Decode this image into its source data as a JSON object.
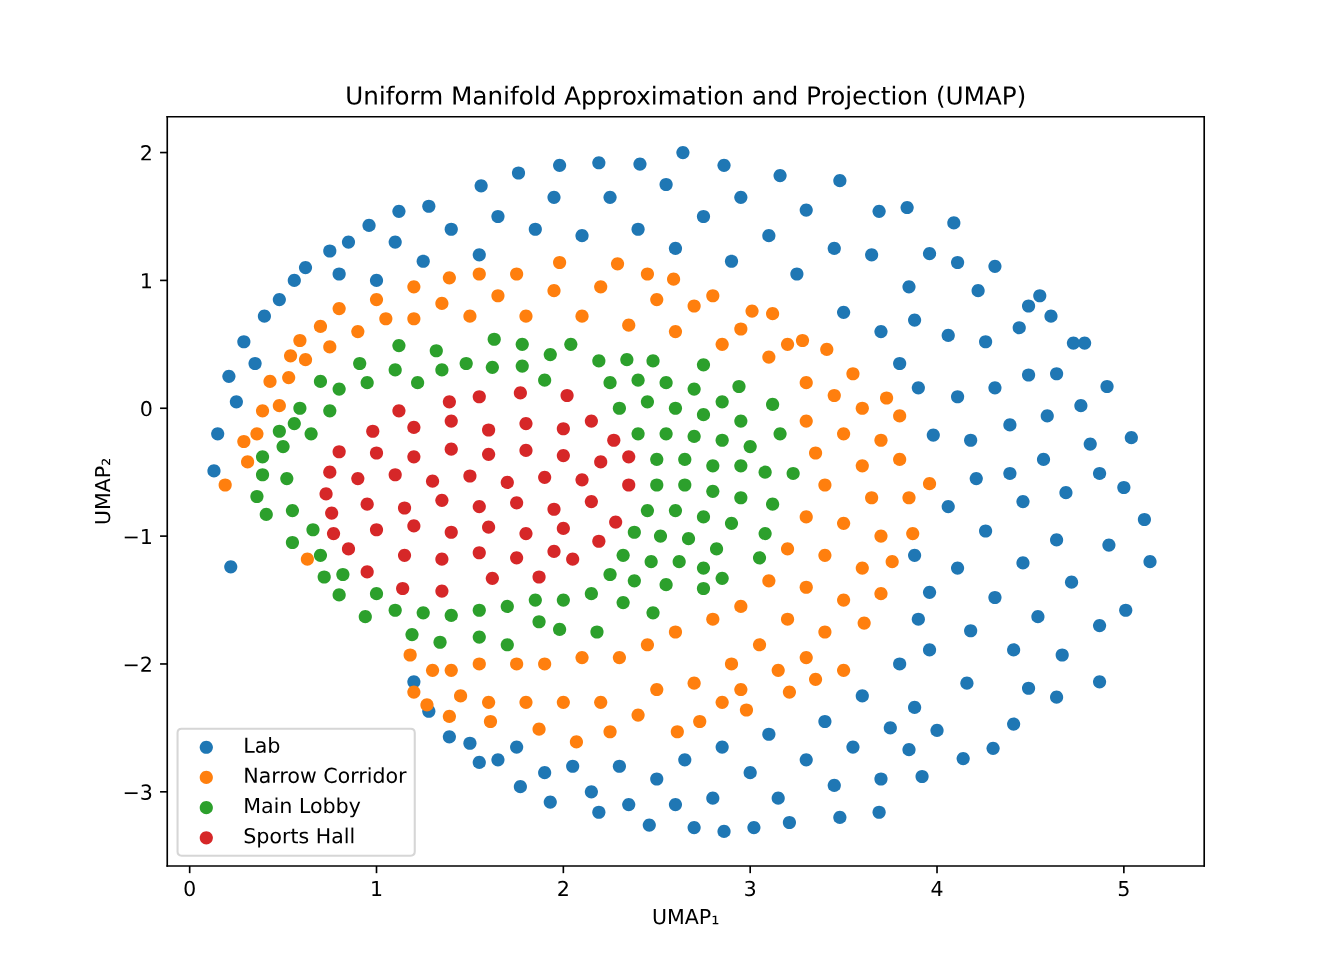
{
  "chart_data": {
    "type": "scatter",
    "title": "Uniform Manifold Approximation and Projection (UMAP)",
    "xlabel": "UMAP₁",
    "ylabel": "UMAP₂",
    "xlim": [
      -0.12,
      5.43
    ],
    "ylim": [
      -3.58,
      2.28
    ],
    "xticks": [
      0,
      1,
      2,
      3,
      4,
      5
    ],
    "yticks": [
      -3,
      -2,
      -1,
      0,
      1,
      2
    ],
    "marker": "circle",
    "legend": "bottom left",
    "series": [
      {
        "name": "Lab",
        "color": "#1f77b4",
        "x": [
          0.13,
          0.22,
          0.15,
          0.21,
          0.29,
          0.4,
          0.56,
          0.75,
          0.96,
          1.12,
          1.28,
          1.56,
          1.76,
          1.98,
          2.19,
          2.41,
          2.64,
          2.86,
          3.16,
          3.48,
          3.69,
          3.84,
          4.09,
          4.31,
          4.55,
          4.79,
          4.91,
          5.04,
          5.11,
          5.14,
          5.01,
          4.87,
          4.64,
          4.41,
          4.3,
          4.14,
          3.92,
          3.69,
          3.48,
          3.21,
          3.02,
          2.86,
          2.7,
          2.46,
          2.19,
          1.93,
          1.77,
          1.55,
          1.39,
          1.28,
          1.2,
          3.96,
          4.11,
          4.22,
          4.49,
          4.61,
          4.44,
          4.73,
          4.26,
          4.06,
          3.88,
          4.64,
          4.49,
          4.31,
          4.11,
          3.9,
          4.77,
          4.59,
          4.39,
          4.18,
          3.98,
          4.82,
          4.57,
          4.39,
          4.21,
          4.87,
          5.0,
          4.69,
          4.46,
          4.06,
          4.26,
          4.64,
          4.92,
          4.46,
          4.11,
          4.72,
          4.31,
          3.96,
          4.54,
          4.87,
          4.18,
          4.41,
          4.67,
          3.96,
          4.16,
          4.49,
          3.88,
          4.0,
          3.85,
          0.35,
          0.48,
          0.62,
          0.85,
          0.8,
          1.0,
          1.1,
          1.25,
          1.4,
          1.55,
          1.65,
          1.85,
          1.95,
          2.1,
          2.25,
          2.4,
          2.55,
          2.6,
          2.75,
          2.9,
          2.95,
          3.1,
          3.25,
          3.3,
          3.45,
          3.5,
          3.65,
          3.7,
          3.85,
          3.8,
          0.25,
          1.5,
          1.65,
          1.75,
          1.9,
          2.05,
          2.15,
          2.3,
          2.35,
          2.5,
          2.6,
          2.65,
          2.8,
          2.85,
          3.0,
          3.1,
          3.15,
          3.3,
          3.4,
          3.45,
          3.55,
          3.6,
          3.7,
          3.75,
          3.8,
          3.9,
          3.88
        ],
        "values": [
          -0.49,
          -1.24,
          -0.2,
          0.25,
          0.52,
          0.72,
          1.0,
          1.23,
          1.43,
          1.54,
          1.58,
          1.74,
          1.84,
          1.9,
          1.92,
          1.91,
          2.0,
          1.9,
          1.82,
          1.78,
          1.54,
          1.57,
          1.45,
          1.11,
          0.88,
          0.51,
          0.17,
          -0.23,
          -0.87,
          -1.2,
          -1.58,
          -2.14,
          -2.26,
          -2.47,
          -2.66,
          -2.74,
          -2.88,
          -3.16,
          -3.2,
          -3.24,
          -3.28,
          -3.31,
          -3.28,
          -3.26,
          -3.16,
          -3.08,
          -2.96,
          -2.77,
          -2.57,
          -2.37,
          -2.14,
          1.21,
          1.14,
          0.92,
          0.8,
          0.72,
          0.63,
          0.51,
          0.52,
          0.57,
          0.69,
          0.27,
          0.26,
          0.16,
          0.09,
          0.16,
          0.02,
          -0.06,
          -0.13,
          -0.25,
          -0.21,
          -0.28,
          -0.4,
          -0.51,
          -0.55,
          -0.51,
          -0.62,
          -0.66,
          -0.73,
          -0.77,
          -0.96,
          -1.03,
          -1.07,
          -1.21,
          -1.25,
          -1.36,
          -1.48,
          -1.44,
          -1.63,
          -1.7,
          -1.74,
          -1.89,
          -1.93,
          -1.89,
          -2.15,
          -2.19,
          -2.34,
          -2.52,
          -2.67,
          0.35,
          0.85,
          1.1,
          1.3,
          1.05,
          1.0,
          1.3,
          1.15,
          1.4,
          1.2,
          1.5,
          1.4,
          1.65,
          1.35,
          1.65,
          1.4,
          1.75,
          1.25,
          1.5,
          1.15,
          1.65,
          1.35,
          1.05,
          1.55,
          1.25,
          0.75,
          1.2,
          0.6,
          0.95,
          0.35,
          0.05,
          -2.62,
          -2.75,
          -2.65,
          -2.85,
          -2.8,
          -3.0,
          -2.8,
          -3.1,
          -2.9,
          -3.1,
          -2.75,
          -3.05,
          -2.65,
          -2.85,
          -2.55,
          -3.05,
          -2.75,
          -2.45,
          -2.95,
          -2.65,
          -2.25,
          -2.9,
          -2.5,
          -2.0,
          -1.65,
          -1.15
        ]
      },
      {
        "name": "Narrow Corridor",
        "color": "#ff7f0e",
        "x": [
          0.19,
          0.31,
          0.29,
          0.39,
          0.43,
          0.54,
          0.59,
          0.7,
          0.8,
          1.0,
          1.2,
          1.39,
          1.55,
          1.75,
          1.98,
          2.29,
          2.45,
          2.59,
          2.8,
          3.01,
          3.12,
          3.28,
          3.41,
          3.55,
          3.73,
          3.8,
          3.96,
          3.87,
          3.76,
          3.7,
          3.61,
          3.5,
          3.35,
          3.21,
          2.98,
          2.73,
          2.61,
          2.25,
          2.07,
          1.87,
          1.61,
          1.39,
          1.27,
          1.2,
          1.18,
          0.63,
          0.9,
          1.05,
          1.2,
          1.35,
          1.5,
          1.65,
          1.8,
          1.95,
          2.1,
          2.2,
          2.35,
          2.5,
          2.6,
          2.7,
          2.85,
          2.95,
          3.1,
          3.2,
          0.48,
          0.53,
          0.62,
          0.75,
          0.36,
          3.3,
          3.45,
          3.6,
          3.3,
          3.5,
          3.7,
          3.35,
          3.6,
          3.8,
          3.4,
          3.65,
          3.85,
          3.3,
          3.5,
          3.7,
          3.2,
          3.4,
          3.6,
          3.1,
          3.3,
          3.5,
          2.95,
          3.2,
          3.4,
          2.8,
          3.05,
          3.3,
          2.6,
          2.9,
          3.15,
          2.45,
          2.7,
          2.95,
          2.3,
          2.5,
          2.85,
          2.1,
          2.2,
          2.4,
          1.9,
          2.0,
          1.75,
          1.8,
          1.55,
          1.6,
          1.4,
          1.45,
          1.3
        ],
        "values": [
          -0.6,
          -0.42,
          -0.26,
          -0.02,
          0.21,
          0.41,
          0.53,
          0.64,
          0.78,
          0.85,
          0.95,
          1.02,
          1.05,
          1.05,
          1.14,
          1.13,
          1.05,
          1.01,
          0.88,
          0.76,
          0.74,
          0.53,
          0.46,
          0.27,
          0.08,
          -0.06,
          -0.59,
          -0.98,
          -1.2,
          -1.45,
          -1.68,
          -2.05,
          -2.12,
          -2.22,
          -2.36,
          -2.45,
          -2.53,
          -2.53,
          -2.61,
          -2.51,
          -2.45,
          -2.41,
          -2.32,
          -2.22,
          -1.93,
          -1.18,
          0.6,
          0.7,
          0.7,
          0.82,
          0.72,
          0.88,
          0.72,
          0.92,
          0.72,
          0.95,
          0.65,
          0.85,
          0.6,
          0.8,
          0.5,
          0.62,
          0.4,
          0.5,
          0.02,
          0.24,
          0.38,
          0.48,
          -0.2,
          0.2,
          0.1,
          0.0,
          -0.1,
          -0.2,
          -0.25,
          -0.35,
          -0.45,
          -0.4,
          -0.6,
          -0.7,
          -0.7,
          -0.85,
          -0.9,
          -1.0,
          -1.1,
          -1.15,
          -1.25,
          -1.35,
          -1.4,
          -1.5,
          -1.55,
          -1.65,
          -1.75,
          -1.65,
          -1.85,
          -1.95,
          -1.75,
          -2.0,
          -2.05,
          -1.85,
          -2.15,
          -2.2,
          -1.95,
          -2.2,
          -2.3,
          -1.95,
          -2.3,
          -2.4,
          -2.0,
          -2.3,
          -2.0,
          -2.3,
          -2.0,
          -2.3,
          -2.05,
          -2.25,
          -2.05
        ]
      },
      {
        "name": "Main Lobby",
        "color": "#2ca02c",
        "x": [
          0.59,
          0.56,
          0.7,
          0.91,
          1.12,
          1.32,
          1.63,
          1.78,
          1.93,
          2.04,
          2.19,
          2.34,
          2.48,
          2.75,
          2.94,
          3.12,
          3.16,
          3.23,
          3.12,
          3.08,
          3.05,
          2.85,
          2.75,
          2.48,
          2.18,
          1.98,
          1.87,
          1.7,
          1.55,
          1.34,
          1.19,
          0.94,
          0.8,
          0.72,
          0.55,
          0.41,
          0.36,
          0.39,
          0.39,
          0.48,
          0.5,
          0.52,
          0.55,
          0.66,
          0.65,
          0.75,
          0.8,
          0.95,
          1.1,
          1.22,
          1.35,
          1.48,
          1.62,
          1.78,
          1.9,
          0.7,
          0.82,
          1.0,
          1.1,
          1.25,
          1.4,
          1.55,
          1.7,
          1.85,
          2.0,
          2.25,
          2.4,
          2.55,
          2.7,
          2.85,
          2.3,
          2.45,
          2.6,
          2.75,
          2.95,
          2.4,
          2.55,
          2.7,
          2.85,
          3.0,
          2.5,
          2.65,
          2.8,
          2.95,
          3.08,
          2.5,
          2.65,
          2.8,
          2.95,
          2.45,
          2.6,
          2.75,
          2.9,
          2.38,
          2.52,
          2.67,
          2.82,
          2.32,
          2.47,
          2.62,
          2.75,
          2.25,
          2.38,
          2.55,
          2.15,
          2.32
        ],
        "values": [
          0.0,
          -0.12,
          0.21,
          0.35,
          0.49,
          0.45,
          0.54,
          0.5,
          0.42,
          0.5,
          0.37,
          0.38,
          0.37,
          0.34,
          0.17,
          0.03,
          -0.2,
          -0.51,
          -0.75,
          -0.98,
          -1.17,
          -1.33,
          -1.41,
          -1.6,
          -1.75,
          -1.73,
          -1.67,
          -1.85,
          -1.79,
          -1.83,
          -1.77,
          -1.63,
          -1.46,
          -1.32,
          -1.05,
          -0.83,
          -0.69,
          -0.52,
          -0.38,
          -0.18,
          -0.3,
          -0.55,
          -0.8,
          -0.95,
          -0.2,
          -0.02,
          0.15,
          0.2,
          0.3,
          0.2,
          0.3,
          0.35,
          0.32,
          0.33,
          0.22,
          -1.15,
          -1.3,
          -1.45,
          -1.58,
          -1.6,
          -1.62,
          -1.58,
          -1.55,
          -1.5,
          -1.5,
          0.2,
          0.22,
          0.2,
          0.15,
          0.05,
          0.0,
          0.05,
          0.0,
          -0.05,
          -0.1,
          -0.2,
          -0.2,
          -0.22,
          -0.25,
          -0.3,
          -0.4,
          -0.4,
          -0.45,
          -0.45,
          -0.5,
          -0.6,
          -0.6,
          -0.65,
          -0.7,
          -0.8,
          -0.8,
          -0.85,
          -0.9,
          -0.97,
          -1.0,
          -1.02,
          -1.1,
          -1.15,
          -1.2,
          -1.2,
          -1.25,
          -1.3,
          -1.35,
          -1.38,
          -1.45,
          -1.52
        ]
      },
      {
        "name": "Sports Hall",
        "color": "#d62728",
        "x": [
          0.73,
          0.75,
          0.8,
          0.98,
          1.12,
          1.39,
          1.55,
          1.77,
          2.02,
          2.15,
          2.27,
          2.35,
          2.35,
          2.28,
          2.19,
          2.05,
          1.87,
          1.62,
          1.35,
          1.14,
          0.95,
          0.85,
          0.77,
          0.76,
          1.2,
          1.4,
          1.6,
          1.8,
          2.0,
          1.0,
          1.2,
          1.4,
          1.6,
          1.8,
          2.0,
          2.2,
          0.9,
          1.1,
          1.3,
          1.5,
          1.7,
          1.9,
          2.1,
          0.95,
          1.15,
          1.35,
          1.55,
          1.75,
          1.95,
          2.15,
          1.0,
          1.2,
          1.4,
          1.6,
          1.8,
          2.0,
          1.15,
          1.35,
          1.55,
          1.75,
          1.95
        ],
        "values": [
          -0.67,
          -0.5,
          -0.34,
          -0.18,
          -0.02,
          0.05,
          0.09,
          0.12,
          0.1,
          -0.1,
          -0.25,
          -0.38,
          -0.6,
          -0.89,
          -1.04,
          -1.18,
          -1.32,
          -1.33,
          -1.43,
          -1.41,
          -1.28,
          -1.1,
          -0.98,
          -0.82,
          -0.15,
          -0.1,
          -0.17,
          -0.12,
          -0.16,
          -0.35,
          -0.38,
          -0.32,
          -0.36,
          -0.33,
          -0.37,
          -0.42,
          -0.55,
          -0.52,
          -0.57,
          -0.53,
          -0.58,
          -0.54,
          -0.56,
          -0.75,
          -0.78,
          -0.72,
          -0.77,
          -0.74,
          -0.79,
          -0.73,
          -0.95,
          -0.92,
          -0.97,
          -0.93,
          -0.98,
          -0.94,
          -1.15,
          -1.18,
          -1.13,
          -1.17,
          -1.12
        ]
      }
    ]
  }
}
